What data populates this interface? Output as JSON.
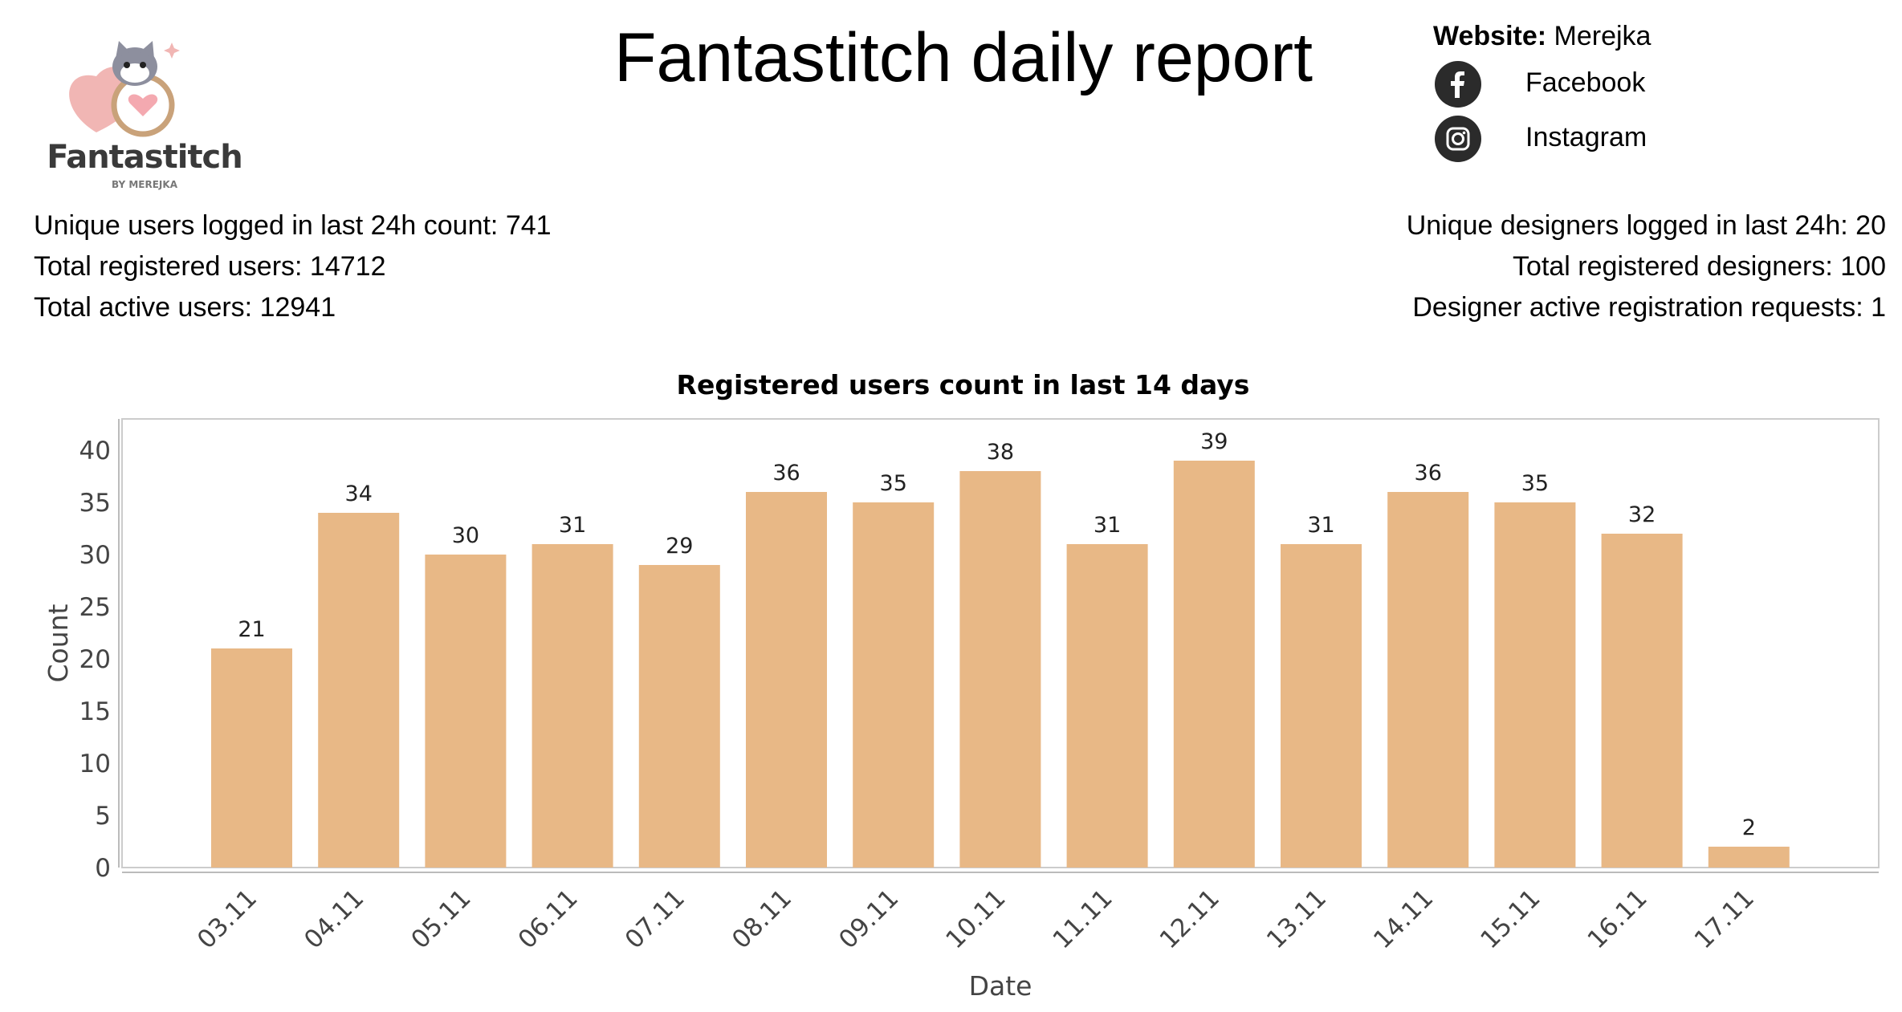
{
  "brand": {
    "logo_text": "Fantastitch",
    "logo_subtext": "BY MEREJKA",
    "colors": {
      "cat_gray": "#8d8f9e",
      "heart_pink": "#f1b6b4",
      "hoop": "#c9a27a"
    }
  },
  "header": {
    "title": "Fantastitch daily report"
  },
  "links": {
    "website_label": "Website:",
    "website_value": "Merejka",
    "items": [
      {
        "icon": "facebook-icon",
        "label": "Facebook"
      },
      {
        "icon": "instagram-icon",
        "label": "Instagram"
      }
    ]
  },
  "stats_left": [
    "Unique users logged in last 24h count: 741",
    "Total registered users: 14712",
    "Total active users: 12941"
  ],
  "stats_right": [
    "Unique designers logged in last 24h: 20",
    "Total registered designers: 100",
    "Designer active registration requests: 1"
  ],
  "chart_data": {
    "type": "bar",
    "title": "Registered users count in last 14 days",
    "xlabel": "Date",
    "ylabel": "Count",
    "categories": [
      "03.11",
      "04.11",
      "05.11",
      "06.11",
      "07.11",
      "08.11",
      "09.11",
      "10.11",
      "11.11",
      "12.11",
      "13.11",
      "14.11",
      "15.11",
      "16.11",
      "17.11"
    ],
    "values": [
      21,
      34,
      30,
      31,
      29,
      36,
      35,
      38,
      31,
      39,
      31,
      36,
      35,
      32,
      2
    ],
    "ylim": [
      0,
      43
    ],
    "yticks": [
      0,
      5,
      10,
      15,
      20,
      25,
      30,
      35,
      40
    ],
    "bar_color": "#e8b886",
    "grid": false,
    "data_labels": true
  }
}
